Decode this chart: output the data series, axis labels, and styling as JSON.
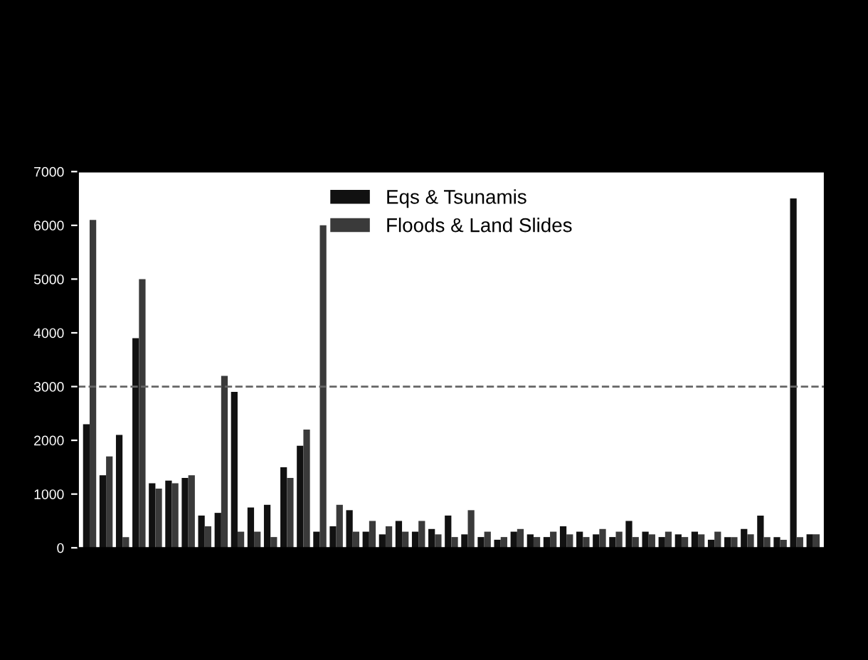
{
  "chart_data": {
    "type": "bar",
    "categories": [
      null,
      null,
      null,
      null,
      null,
      null,
      null,
      null,
      null,
      null,
      null,
      null,
      null,
      null,
      null,
      null,
      null,
      null,
      null,
      null,
      null,
      null,
      null,
      null,
      null,
      null,
      null,
      null,
      null,
      null,
      null,
      null,
      null,
      null,
      null,
      null,
      null,
      null,
      null,
      null,
      null,
      null,
      null,
      null,
      null
    ],
    "series": [
      {
        "name": "Eqs & Tsunamis",
        "color": "#111111",
        "values": [
          2300,
          1350,
          2100,
          3900,
          1200,
          1250,
          1300,
          600,
          650,
          2900,
          750,
          800,
          1500,
          1900,
          300,
          400,
          700,
          300,
          250,
          500,
          300,
          350,
          600,
          250,
          200,
          150,
          300,
          250,
          200,
          400,
          300,
          250,
          200,
          500,
          300,
          200,
          250,
          300,
          150,
          200,
          350,
          600,
          200,
          6500,
          250
        ]
      },
      {
        "name": "Floods & Land Slides",
        "color": "#3a3a3a",
        "values": [
          6100,
          1700,
          200,
          5000,
          1100,
          1200,
          1350,
          400,
          3200,
          300,
          300,
          200,
          1300,
          2200,
          6000,
          800,
          300,
          500,
          400,
          300,
          500,
          250,
          200,
          700,
          300,
          200,
          350,
          200,
          300,
          250,
          200,
          350,
          300,
          200,
          250,
          300,
          200,
          250,
          300,
          200,
          250,
          200,
          150,
          200,
          250
        ]
      }
    ],
    "ylim": [
      0,
      7000
    ],
    "yticks": [
      0,
      1000,
      2000,
      3000,
      4000,
      5000,
      6000,
      7000
    ],
    "ref_lines": [
      {
        "axis": "y",
        "value": 3000,
        "color": "#666666",
        "line_style": "dashed"
      }
    ],
    "legend": "top"
  }
}
